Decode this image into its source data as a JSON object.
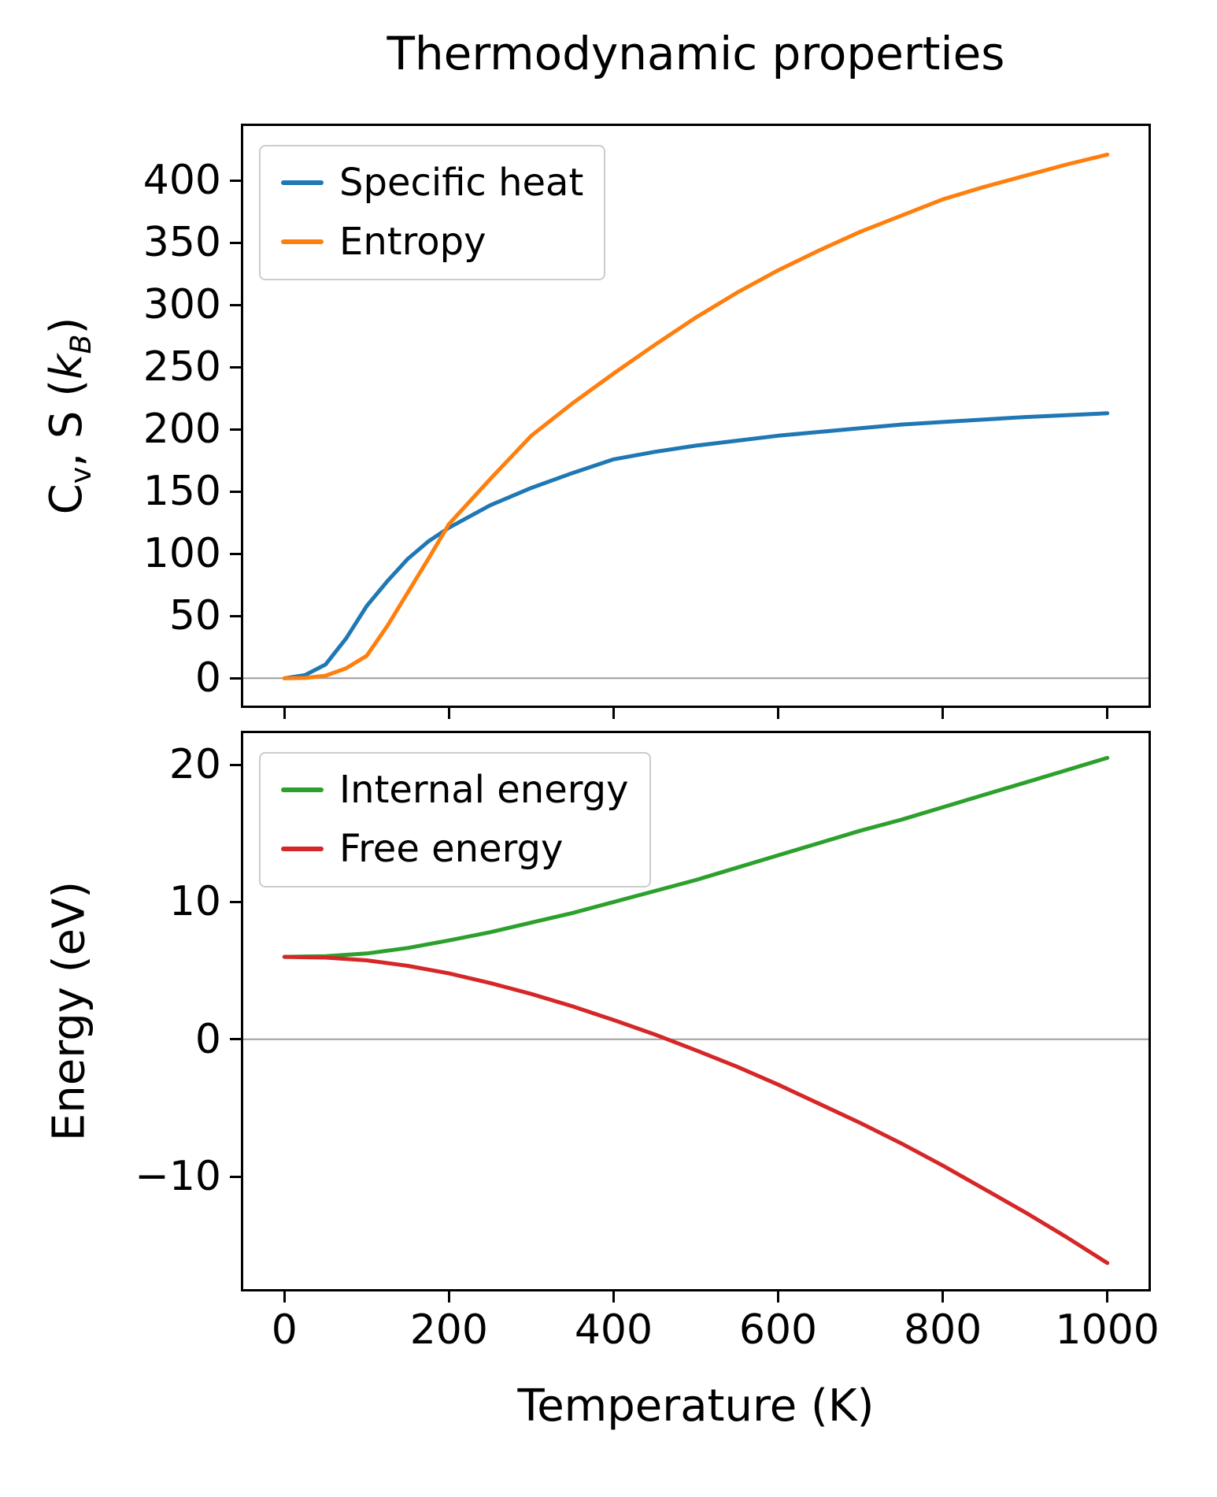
{
  "title": "Thermodynamic properties",
  "figure": {
    "background": "#ffffff",
    "axis_color": "#000000",
    "zero_line_color": "#9e9e9e"
  },
  "chart_data": [
    {
      "type": "line",
      "name": "thermo-upper",
      "title": "Thermodynamic properties",
      "xlabel": "",
      "ylabel": "C_{v}, S (*k*_{*B*})",
      "x": [
        0,
        25,
        50,
        75,
        100,
        125,
        150,
        175,
        200,
        250,
        300,
        350,
        400,
        450,
        500,
        550,
        600,
        650,
        700,
        750,
        800,
        850,
        900,
        950,
        1000
      ],
      "series": [
        {
          "name": "Specific heat",
          "color": "#1f77b4",
          "values": [
            0,
            2.5,
            11,
            32,
            58,
            78,
            96,
            110,
            121,
            139,
            153,
            165,
            176,
            182,
            187,
            191,
            195,
            198,
            201,
            204,
            206,
            208,
            210,
            211.5,
            213
          ]
        },
        {
          "name": "Entropy",
          "color": "#ff7f0e",
          "values": [
            0,
            0.2,
            2,
            8,
            18,
            42,
            69,
            96,
            124,
            160,
            195,
            221,
            245,
            268,
            290,
            310,
            328,
            344,
            359,
            372,
            385,
            395,
            404,
            413,
            421
          ]
        }
      ],
      "xlim": [
        -50,
        1050
      ],
      "ylim": [
        -22,
        444
      ],
      "xticks": [
        0,
        200,
        400,
        600,
        800,
        1000
      ],
      "show_xtick_labels": false,
      "yticks": [
        0,
        50,
        100,
        150,
        200,
        250,
        300,
        350,
        400
      ],
      "zero_line": true,
      "grid": false,
      "legend_position": "upper left"
    },
    {
      "type": "line",
      "name": "thermo-lower",
      "title": "",
      "xlabel": "Temperature (K)",
      "ylabel": "Energy (eV)",
      "x": [
        0,
        50,
        100,
        150,
        200,
        250,
        300,
        350,
        400,
        450,
        500,
        550,
        600,
        650,
        700,
        750,
        800,
        850,
        900,
        950,
        1000
      ],
      "series": [
        {
          "name": "Internal energy",
          "color": "#2ca02c",
          "values": [
            6.0,
            6.05,
            6.25,
            6.65,
            7.2,
            7.8,
            8.5,
            9.2,
            10.0,
            10.8,
            11.6,
            12.5,
            13.4,
            14.3,
            15.2,
            16.0,
            16.9,
            17.8,
            18.7,
            19.6,
            20.5
          ]
        },
        {
          "name": "Free energy",
          "color": "#d62728",
          "values": [
            6.0,
            5.95,
            5.75,
            5.35,
            4.8,
            4.1,
            3.3,
            2.4,
            1.4,
            0.35,
            -0.8,
            -2.0,
            -3.3,
            -4.7,
            -6.1,
            -7.6,
            -9.2,
            -10.9,
            -12.6,
            -14.4,
            -16.3
          ]
        }
      ],
      "xlim": [
        -50,
        1050
      ],
      "ylim": [
        -18.2,
        22.3
      ],
      "xticks": [
        0,
        200,
        400,
        600,
        800,
        1000
      ],
      "show_xtick_labels": true,
      "yticks": [
        -10,
        0,
        10,
        20
      ],
      "zero_line": true,
      "grid": false,
      "legend_position": "upper left"
    }
  ]
}
